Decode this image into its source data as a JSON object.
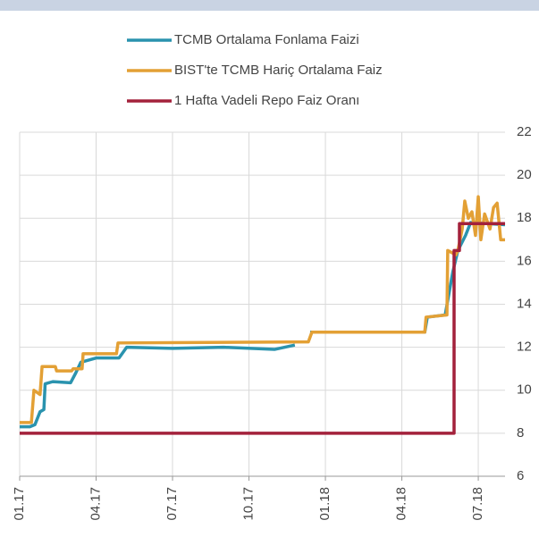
{
  "chart_data": {
    "type": "line",
    "series": [
      {
        "name": "TCMB Ortalama Fonlama Faizi",
        "color": "#2a93ae",
        "x": [
          0,
          0.4,
          0.6,
          0.8,
          0.95,
          1.0,
          1.3,
          2.0,
          2.2,
          2.4,
          3.0,
          3.9,
          4.2,
          6,
          8,
          10,
          10.8,
          10.8,
          11.4,
          15.9,
          16.0,
          16.7,
          17.0,
          17.2,
          17.5,
          17.7,
          19.05
        ],
        "values": [
          8.3,
          8.3,
          8.4,
          9.0,
          9.1,
          10.3,
          10.4,
          10.35,
          10.8,
          11.3,
          11.5,
          11.5,
          12.0,
          11.95,
          12.0,
          11.9,
          12.1,
          null,
          12.7,
          12.7,
          13.4,
          13.5,
          15.5,
          16.5,
          17.2,
          17.8,
          17.7
        ]
      },
      {
        "name": "BIST'te TCMB Hariç Ortalama Faiz",
        "color": "#e3a035",
        "x": [
          0,
          0.46,
          0.56,
          0.8,
          0.88,
          1.4,
          1.45,
          2.04,
          2.1,
          2.45,
          2.49,
          3.8,
          3.86,
          11.33,
          11.47,
          15.9,
          15.95,
          16.77,
          16.8,
          17.12,
          17.2,
          17.37,
          17.47,
          17.61,
          17.75,
          17.89,
          18.0,
          18.1,
          18.25,
          18.46,
          18.6,
          18.74,
          18.88,
          19.05
        ],
        "values": [
          8.5,
          8.5,
          10.0,
          9.8,
          11.1,
          11.1,
          10.9,
          10.9,
          11.0,
          11.0,
          11.7,
          11.7,
          12.2,
          12.25,
          12.7,
          12.7,
          13.4,
          13.5,
          16.5,
          16.3,
          16.5,
          17.5,
          18.8,
          18.0,
          18.3,
          17.2,
          19.0,
          17.0,
          18.2,
          17.5,
          18.5,
          18.7,
          17.0,
          17.0
        ]
      },
      {
        "name": "1 Hafta Vadeli Repo Faiz Oranı",
        "color": "#a3213b",
        "x": [
          0,
          17.05,
          17.05,
          17.26,
          17.26,
          19.05
        ],
        "values": [
          8,
          8,
          16.5,
          16.5,
          17.75,
          17.75
        ]
      }
    ],
    "xlim": [
      0,
      19.05
    ],
    "xticks": [
      {
        "value": 0,
        "label": "01.17"
      },
      {
        "value": 3,
        "label": "04.17"
      },
      {
        "value": 6,
        "label": "07.17"
      },
      {
        "value": 9,
        "label": "10.17"
      },
      {
        "value": 12,
        "label": "01.18"
      },
      {
        "value": 15,
        "label": "04.18"
      },
      {
        "value": 18,
        "label": "07.18"
      }
    ],
    "ylim": [
      6,
      22
    ],
    "yticks": [
      6,
      8,
      10,
      12,
      14,
      16,
      18,
      20,
      22
    ],
    "grid": true
  }
}
